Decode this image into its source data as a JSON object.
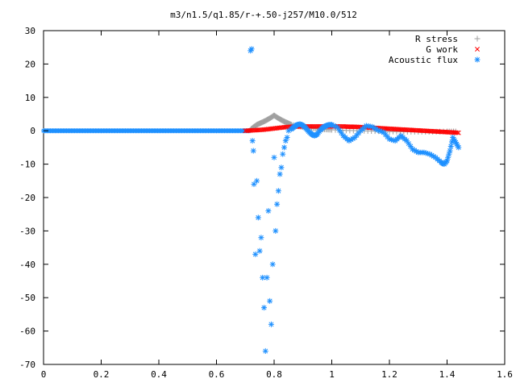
{
  "chart_data": {
    "type": "scatter",
    "title": "m3/n1.5/q1.85/r-+.50-j257/M10.0/512",
    "xlabel": "",
    "ylabel": "",
    "xlim": [
      0,
      1.6
    ],
    "ylim": [
      -70,
      30
    ],
    "x_ticks": [
      0,
      0.2,
      0.4,
      0.6,
      0.8,
      1,
      1.2,
      1.4,
      1.6
    ],
    "x_tick_labels": [
      "0",
      "0.2",
      "0.4",
      "0.6",
      "0.8",
      "1",
      "1.2",
      "1.4",
      "1.6"
    ],
    "y_ticks": [
      30,
      20,
      10,
      0,
      -10,
      -20,
      -30,
      -40,
      -50,
      -60,
      -70
    ],
    "y_tick_labels": [
      "30",
      "20",
      "10",
      "0",
      "-10",
      "-20",
      "-30",
      "-40",
      "-50",
      "-60",
      "-70"
    ],
    "grid": false,
    "legend_position": "top-right",
    "series": [
      {
        "name": "R stress",
        "marker": "plus",
        "color": "#a0a0a0",
        "x": [
          0.72,
          0.73,
          0.74,
          0.75,
          0.76,
          0.77,
          0.78,
          0.79,
          0.8,
          0.81,
          0.82,
          0.83,
          0.84,
          0.85,
          0.86,
          0.88,
          0.9,
          0.92,
          0.94,
          0.96,
          0.98,
          1.0,
          1.05,
          1.1,
          1.15,
          1.2,
          1.25,
          1.3,
          1.35,
          1.4,
          1.43
        ],
        "y": [
          0.5,
          1.2,
          1.8,
          2.2,
          2.6,
          3.0,
          3.5,
          4.0,
          4.6,
          4.0,
          3.5,
          3.0,
          2.6,
          2.2,
          1.8,
          1.4,
          1.1,
          0.9,
          0.7,
          0.5,
          0.4,
          0.3,
          0.1,
          0.0,
          -0.1,
          -0.2,
          -0.3,
          -0.3,
          -0.3,
          -0.2,
          -0.2
        ]
      },
      {
        "name": "G work",
        "marker": "cross",
        "color": "#ff0000",
        "x": [
          0.7,
          0.72,
          0.74,
          0.76,
          0.78,
          0.8,
          0.82,
          0.84,
          0.86,
          0.88,
          0.9,
          0.92,
          0.94,
          0.96,
          0.98,
          1.0,
          1.02,
          1.04,
          1.06,
          1.08,
          1.1,
          1.12,
          1.14,
          1.16,
          1.18,
          1.2,
          1.22,
          1.24,
          1.26,
          1.28,
          1.3,
          1.32,
          1.34,
          1.36,
          1.38,
          1.4,
          1.42,
          1.44
        ],
        "y": [
          0.0,
          0.1,
          0.2,
          0.3,
          0.5,
          0.7,
          0.9,
          1.1,
          1.2,
          1.3,
          1.3,
          1.3,
          1.3,
          1.3,
          1.3,
          1.3,
          1.3,
          1.3,
          1.2,
          1.2,
          1.1,
          1.0,
          0.9,
          0.8,
          0.7,
          0.6,
          0.5,
          0.4,
          0.3,
          0.2,
          0.1,
          0.0,
          -0.1,
          -0.2,
          -0.3,
          -0.4,
          -0.5,
          -0.6
        ]
      },
      {
        "name": "Acoustic flux",
        "marker": "star",
        "color": "#1e90ff",
        "x": [
          0.718,
          0.722,
          0.725,
          0.728,
          0.73,
          0.735,
          0.74,
          0.745,
          0.75,
          0.755,
          0.76,
          0.765,
          0.77,
          0.775,
          0.78,
          0.785,
          0.79,
          0.795,
          0.8,
          0.805,
          0.81,
          0.815,
          0.82,
          0.825,
          0.83,
          0.835,
          0.84,
          0.845,
          0.85,
          0.86,
          0.87,
          0.88,
          0.89,
          0.9,
          0.91,
          0.92,
          0.93,
          0.94,
          0.95,
          0.96,
          0.97,
          0.98,
          0.99,
          1.0,
          1.02,
          1.04,
          1.06,
          1.08,
          1.1,
          1.12,
          1.14,
          1.16,
          1.18,
          1.2,
          1.22,
          1.24,
          1.26,
          1.28,
          1.3,
          1.32,
          1.34,
          1.36,
          1.38,
          1.39,
          1.4,
          1.41,
          1.42,
          1.43,
          1.44
        ],
        "y": [
          24,
          24.5,
          -3,
          -6,
          -16,
          -37,
          -15,
          -26,
          -36,
          -32,
          -44,
          -53,
          -66,
          -44,
          -24,
          -51,
          -58,
          -40,
          -8,
          -30,
          -22,
          -18,
          -13,
          -11,
          -7,
          -5,
          -3,
          -2,
          0,
          0.5,
          1.2,
          1.8,
          2.0,
          1.6,
          0.8,
          -0.2,
          -1.0,
          -1.5,
          -1.0,
          0.2,
          1.0,
          1.5,
          1.8,
          1.8,
          1.0,
          -1.5,
          -3.0,
          -2.0,
          0.0,
          1.5,
          1.2,
          0.2,
          -0.5,
          -2.5,
          -3.0,
          -1.5,
          -3.0,
          -5.5,
          -6.5,
          -6.5,
          -7.0,
          -8.0,
          -9.5,
          -10.0,
          -9.0,
          -6.0,
          -2.0,
          -3.5,
          -5.0
        ]
      }
    ]
  }
}
